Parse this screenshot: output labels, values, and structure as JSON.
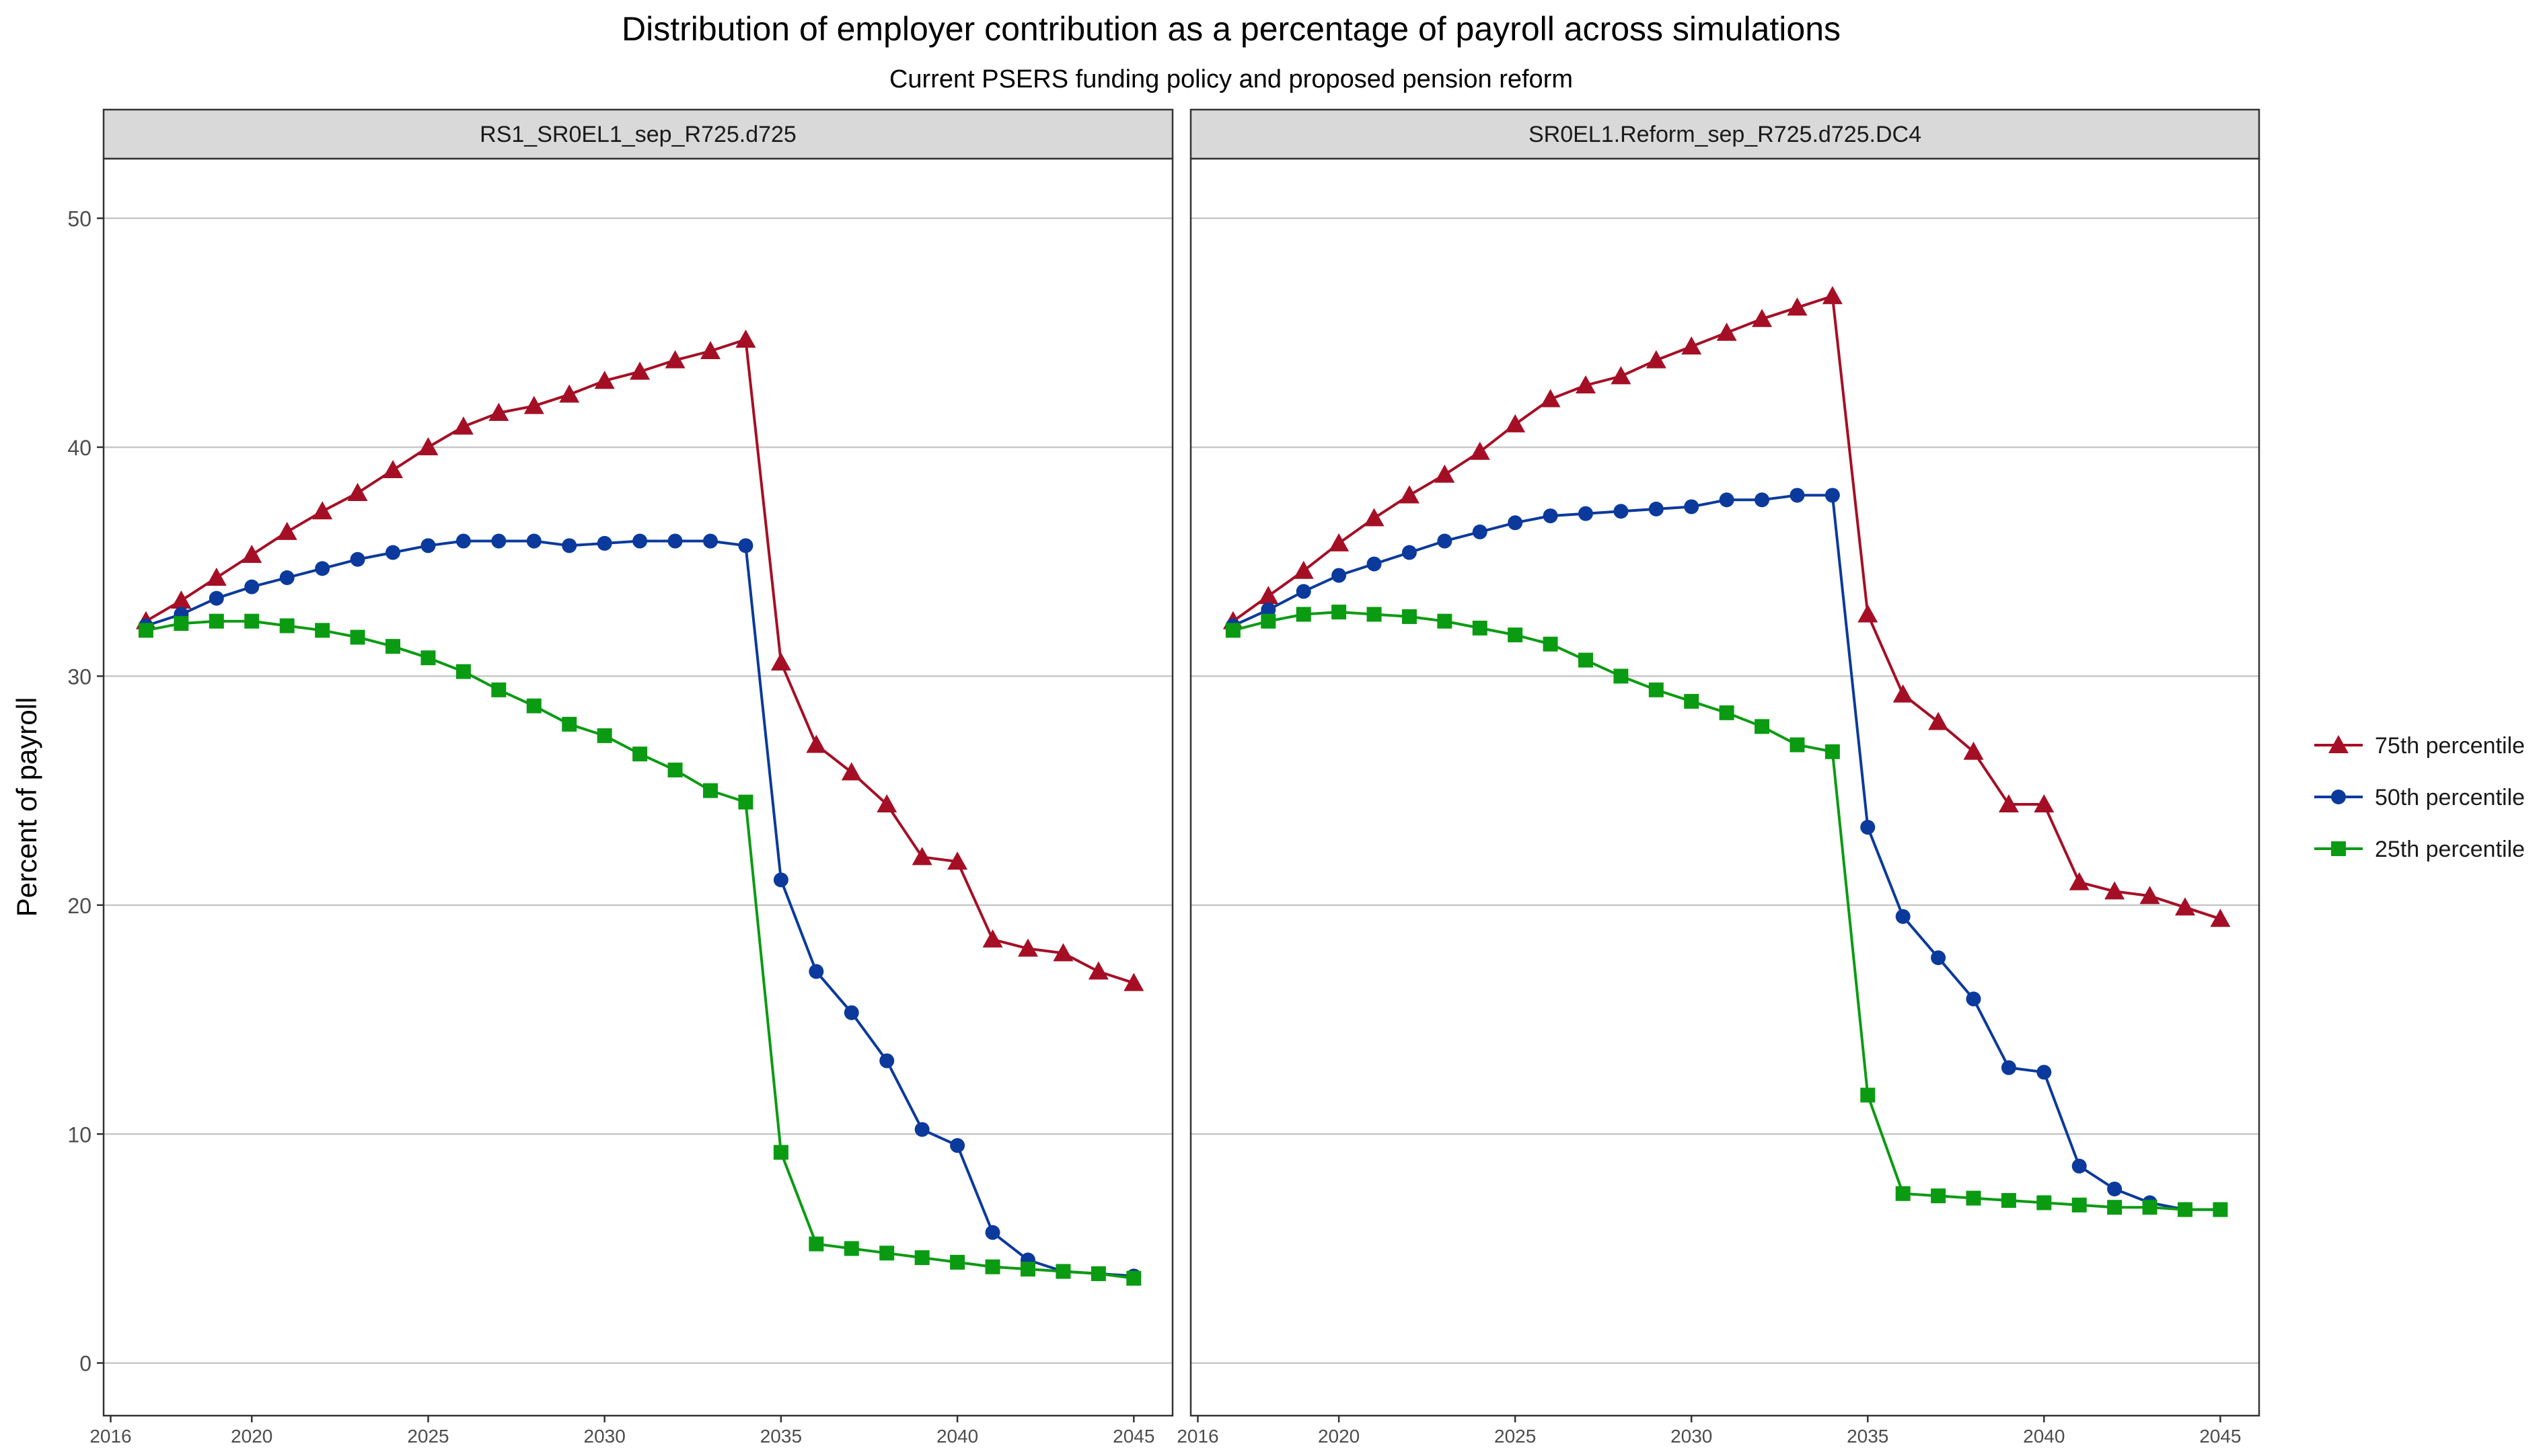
{
  "title": "Distribution of employer contribution as a percentage of payroll across simulations",
  "subtitle": "Current PSERS funding policy and proposed pension reform",
  "ylabel": "Percent of payroll",
  "legend": {
    "items": [
      {
        "label": "75th percentile",
        "series_key": "p75"
      },
      {
        "label": "50th percentile",
        "series_key": "p50"
      },
      {
        "label": "25th percentile",
        "series_key": "p25"
      }
    ]
  },
  "colors": {
    "p75": "#a50f25",
    "p50": "#0b3a9c",
    "p25": "#0a9b12"
  },
  "chart_data": [
    {
      "type": "line",
      "facet_label": "RS1_SR0EL1_sep_R725.d725",
      "x": [
        2017,
        2018,
        2019,
        2020,
        2021,
        2022,
        2023,
        2024,
        2025,
        2026,
        2027,
        2028,
        2029,
        2030,
        2031,
        2032,
        2033,
        2034,
        2035,
        2036,
        2037,
        2038,
        2039,
        2040,
        2041,
        2042,
        2043,
        2044,
        2045
      ],
      "xlim": [
        2015.8,
        2046.1
      ],
      "ylim": [
        -2.3,
        52.6
      ],
      "xticks": [
        2016,
        2020,
        2025,
        2030,
        2035,
        2040,
        2045
      ],
      "yticks": [
        0,
        10,
        20,
        30,
        40,
        50
      ],
      "grid": "horizontal major",
      "series": [
        {
          "name": "75th percentile",
          "key": "p75",
          "marker": "triangle",
          "values": [
            32.4,
            33.3,
            34.3,
            35.3,
            36.3,
            37.2,
            38.0,
            39.0,
            40.0,
            40.9,
            41.5,
            41.8,
            42.3,
            42.9,
            43.3,
            43.8,
            44.2,
            44.7,
            30.6,
            27.0,
            25.8,
            24.4,
            22.1,
            21.9,
            18.5,
            18.1,
            17.9,
            17.1,
            16.6
          ]
        },
        {
          "name": "50th percentile",
          "key": "p50",
          "marker": "circle",
          "values": [
            32.2,
            32.7,
            33.4,
            33.9,
            34.3,
            34.7,
            35.1,
            35.4,
            35.7,
            35.9,
            35.9,
            35.9,
            35.7,
            35.8,
            35.9,
            35.9,
            35.9,
            35.7,
            21.1,
            17.1,
            15.3,
            13.2,
            10.2,
            9.5,
            5.7,
            4.5,
            4.0,
            3.9,
            3.8
          ]
        },
        {
          "name": "25th percentile",
          "key": "p25",
          "marker": "square",
          "values": [
            32.0,
            32.3,
            32.4,
            32.4,
            32.2,
            32.0,
            31.7,
            31.3,
            30.8,
            30.2,
            29.4,
            28.7,
            27.9,
            27.4,
            26.6,
            25.9,
            25.0,
            24.5,
            9.2,
            5.2,
            5.0,
            4.8,
            4.6,
            4.4,
            4.2,
            4.1,
            4.0,
            3.9,
            3.7
          ]
        }
      ]
    },
    {
      "type": "line",
      "facet_label": "SR0EL1.Reform_sep_R725.d725.DC4",
      "x": [
        2017,
        2018,
        2019,
        2020,
        2021,
        2022,
        2023,
        2024,
        2025,
        2026,
        2027,
        2028,
        2029,
        2030,
        2031,
        2032,
        2033,
        2034,
        2035,
        2036,
        2037,
        2038,
        2039,
        2040,
        2041,
        2042,
        2043,
        2044,
        2045
      ],
      "xlim": [
        2015.8,
        2046.1
      ],
      "ylim": [
        -2.3,
        52.6
      ],
      "xticks": [
        2016,
        2020,
        2025,
        2030,
        2035,
        2040,
        2045
      ],
      "yticks": [
        0,
        10,
        20,
        30,
        40,
        50
      ],
      "grid": "horizontal major",
      "series": [
        {
          "name": "75th percentile",
          "key": "p75",
          "marker": "triangle",
          "values": [
            32.4,
            33.5,
            34.6,
            35.8,
            36.9,
            37.9,
            38.8,
            39.8,
            41.0,
            42.1,
            42.7,
            43.1,
            43.8,
            44.4,
            45.0,
            45.6,
            46.1,
            46.6,
            32.7,
            29.2,
            28.0,
            26.7,
            24.4,
            24.4,
            21.0,
            20.6,
            20.4,
            19.9,
            19.4
          ]
        },
        {
          "name": "50th percentile",
          "key": "p50",
          "marker": "circle",
          "values": [
            32.2,
            32.9,
            33.7,
            34.4,
            34.9,
            35.4,
            35.9,
            36.3,
            36.7,
            37.0,
            37.1,
            37.2,
            37.3,
            37.4,
            37.7,
            37.7,
            37.9,
            37.9,
            23.4,
            19.5,
            17.7,
            15.9,
            12.9,
            12.7,
            8.6,
            7.6,
            7.0,
            6.7,
            6.7
          ]
        },
        {
          "name": "25th percentile",
          "key": "p25",
          "marker": "square",
          "values": [
            32.0,
            32.4,
            32.7,
            32.8,
            32.7,
            32.6,
            32.4,
            32.1,
            31.8,
            31.4,
            30.7,
            30.0,
            29.4,
            28.9,
            28.4,
            27.8,
            27.0,
            26.7,
            11.7,
            7.4,
            7.3,
            7.2,
            7.1,
            7.0,
            6.9,
            6.8,
            6.8,
            6.7,
            6.7
          ]
        }
      ]
    }
  ]
}
